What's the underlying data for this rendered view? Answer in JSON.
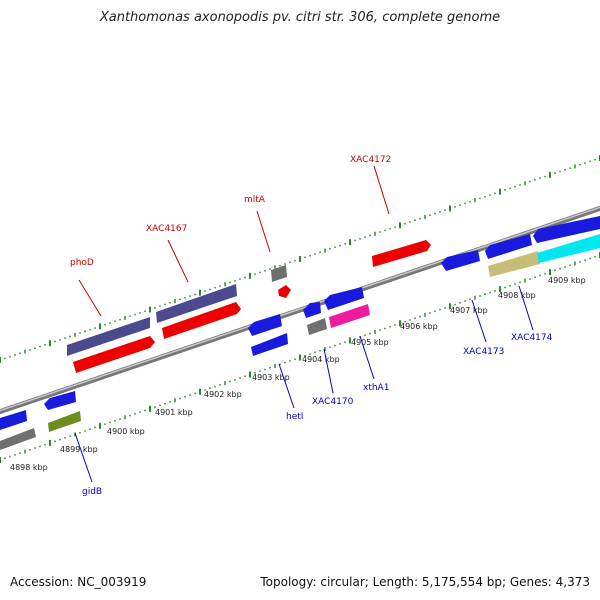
{
  "title": "Xanthomonas axonopodis pv. citri str. 306, complete genome",
  "footer": {
    "accession": "Accession: NC_003919",
    "stats": "Topology: circular; Length: 5,175,554 bp; Genes: 4,373"
  },
  "colors": {
    "red": "#ee0000",
    "blue": "#1a1adf",
    "purple": "#4b4a8e",
    "gray": "#707070",
    "olive": "#6e8b1e",
    "magenta": "#ee1aa0",
    "khaki": "#c8bd78",
    "cyan": "#00e8ee",
    "tick": "#2a8a2a",
    "backbone": "#888888",
    "label_red": "#cc0000",
    "label_blue": "#0000cc"
  },
  "kbp_labels": [
    "4898 kbp",
    "4899 kbp",
    "4900 kbp",
    "4901 kbp",
    "4902 kbp",
    "4903 kbp",
    "4904 kbp",
    "4905 kbp",
    "4906 kbp",
    "4907 kbp",
    "4908 kbp",
    "4909 kbp"
  ],
  "gene_labels": [
    "phoD",
    "XAC4167",
    "mltA",
    "XAC4172",
    "gidB",
    "hetI",
    "XAC4170",
    "xthA1",
    "XAC4173",
    "XAC4174"
  ]
}
